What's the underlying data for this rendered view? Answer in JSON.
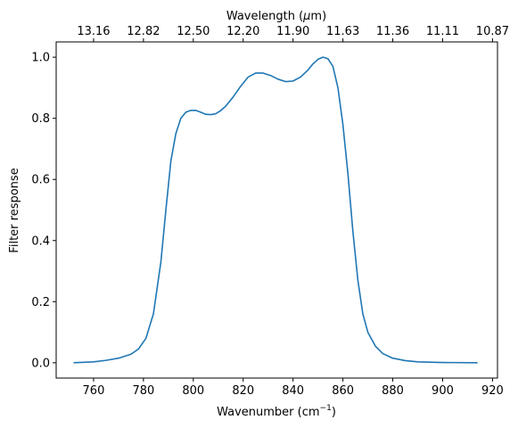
{
  "chart_data": {
    "type": "line",
    "xlabel": "Wavenumber (cm",
    "xlabel_sup": "−1",
    "xlabel_end": ")",
    "ylabel": "Filter response",
    "top_xlabel": "Wavelength (",
    "top_xlabel_mu": "μ",
    "top_xlabel_end": "m)",
    "xlim": [
      745,
      922
    ],
    "ylim": [
      -0.05,
      1.05
    ],
    "x_ticks": [
      760,
      780,
      800,
      820,
      840,
      860,
      880,
      900,
      920
    ],
    "y_ticks": [
      0.0,
      0.2,
      0.4,
      0.6,
      0.8,
      1.0
    ],
    "y_tick_labels": [
      "0.0",
      "0.2",
      "0.4",
      "0.6",
      "0.8",
      "1.0"
    ],
    "top_ticks_wavenumber": [
      760,
      780,
      800,
      820,
      840,
      860,
      880,
      900,
      920
    ],
    "top_tick_labels": [
      "13.16",
      "12.82",
      "12.50",
      "12.20",
      "11.90",
      "11.63",
      "11.36",
      "11.11",
      "10.87"
    ],
    "grid": false,
    "line_color": "#1f77b4",
    "series": [
      {
        "x": [
          752,
          760,
          765,
          770,
          775,
          778,
          781,
          784,
          787,
          789,
          791,
          793,
          795,
          797,
          799,
          801,
          803,
          805,
          807,
          809,
          811,
          813,
          816,
          819,
          822,
          825,
          828,
          831,
          834,
          837,
          840,
          843,
          846,
          848,
          850,
          852,
          854,
          856,
          858,
          860,
          862,
          864,
          866,
          868,
          870,
          873,
          876,
          880,
          885,
          890,
          900,
          914
        ],
        "y": [
          0.0,
          0.003,
          0.008,
          0.015,
          0.028,
          0.045,
          0.08,
          0.16,
          0.33,
          0.5,
          0.66,
          0.75,
          0.8,
          0.82,
          0.826,
          0.826,
          0.82,
          0.813,
          0.812,
          0.815,
          0.825,
          0.84,
          0.87,
          0.905,
          0.935,
          0.948,
          0.948,
          0.94,
          0.928,
          0.92,
          0.922,
          0.935,
          0.958,
          0.978,
          0.993,
          1.0,
          0.995,
          0.97,
          0.9,
          0.78,
          0.62,
          0.43,
          0.27,
          0.16,
          0.1,
          0.055,
          0.03,
          0.015,
          0.007,
          0.003,
          0.001,
          0.0
        ]
      }
    ]
  }
}
